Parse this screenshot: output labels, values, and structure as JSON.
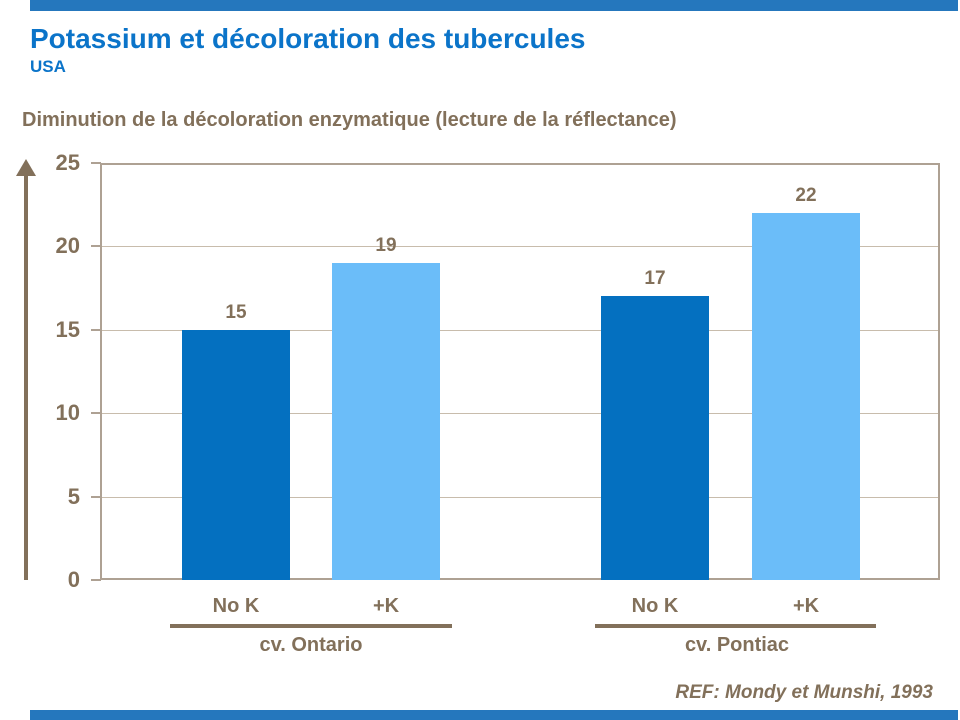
{
  "header": {
    "title": "Potassium et décoloration des tubercules",
    "region": "USA"
  },
  "footer": {
    "reference": "REF: Mondy et Munshi, 1993"
  },
  "colors": {
    "title_blue": "#0b74c9",
    "accent_strip_blue": "#2577bd",
    "bar_dark_blue": "#0470c0",
    "bar_light_blue": "#6bbdf9",
    "text_brown": "#82705a",
    "gridline_tan": "#c8bcac",
    "plot_border_tan": "#aea193"
  },
  "chart_data": {
    "type": "bar",
    "title": "Diminution de la décoloration enzymatique (lecture de la réflectance)",
    "xlabel": "",
    "ylabel": "",
    "ylim": [
      0,
      25
    ],
    "yticks": [
      0,
      5,
      10,
      15,
      20,
      25
    ],
    "grid": true,
    "legend": false,
    "groups": [
      {
        "label": "cv. Ontario",
        "bars": [
          {
            "category": "No K",
            "value": 15,
            "color_role": "dark"
          },
          {
            "category": "+K",
            "value": 19,
            "color_role": "light"
          }
        ]
      },
      {
        "label": "cv. Pontiac",
        "bars": [
          {
            "category": "No K",
            "value": 17,
            "color_role": "dark"
          },
          {
            "category": "+K",
            "value": 22,
            "color_role": "light"
          }
        ]
      }
    ],
    "reference": "REF: Mondy et Munshi, 1993"
  }
}
